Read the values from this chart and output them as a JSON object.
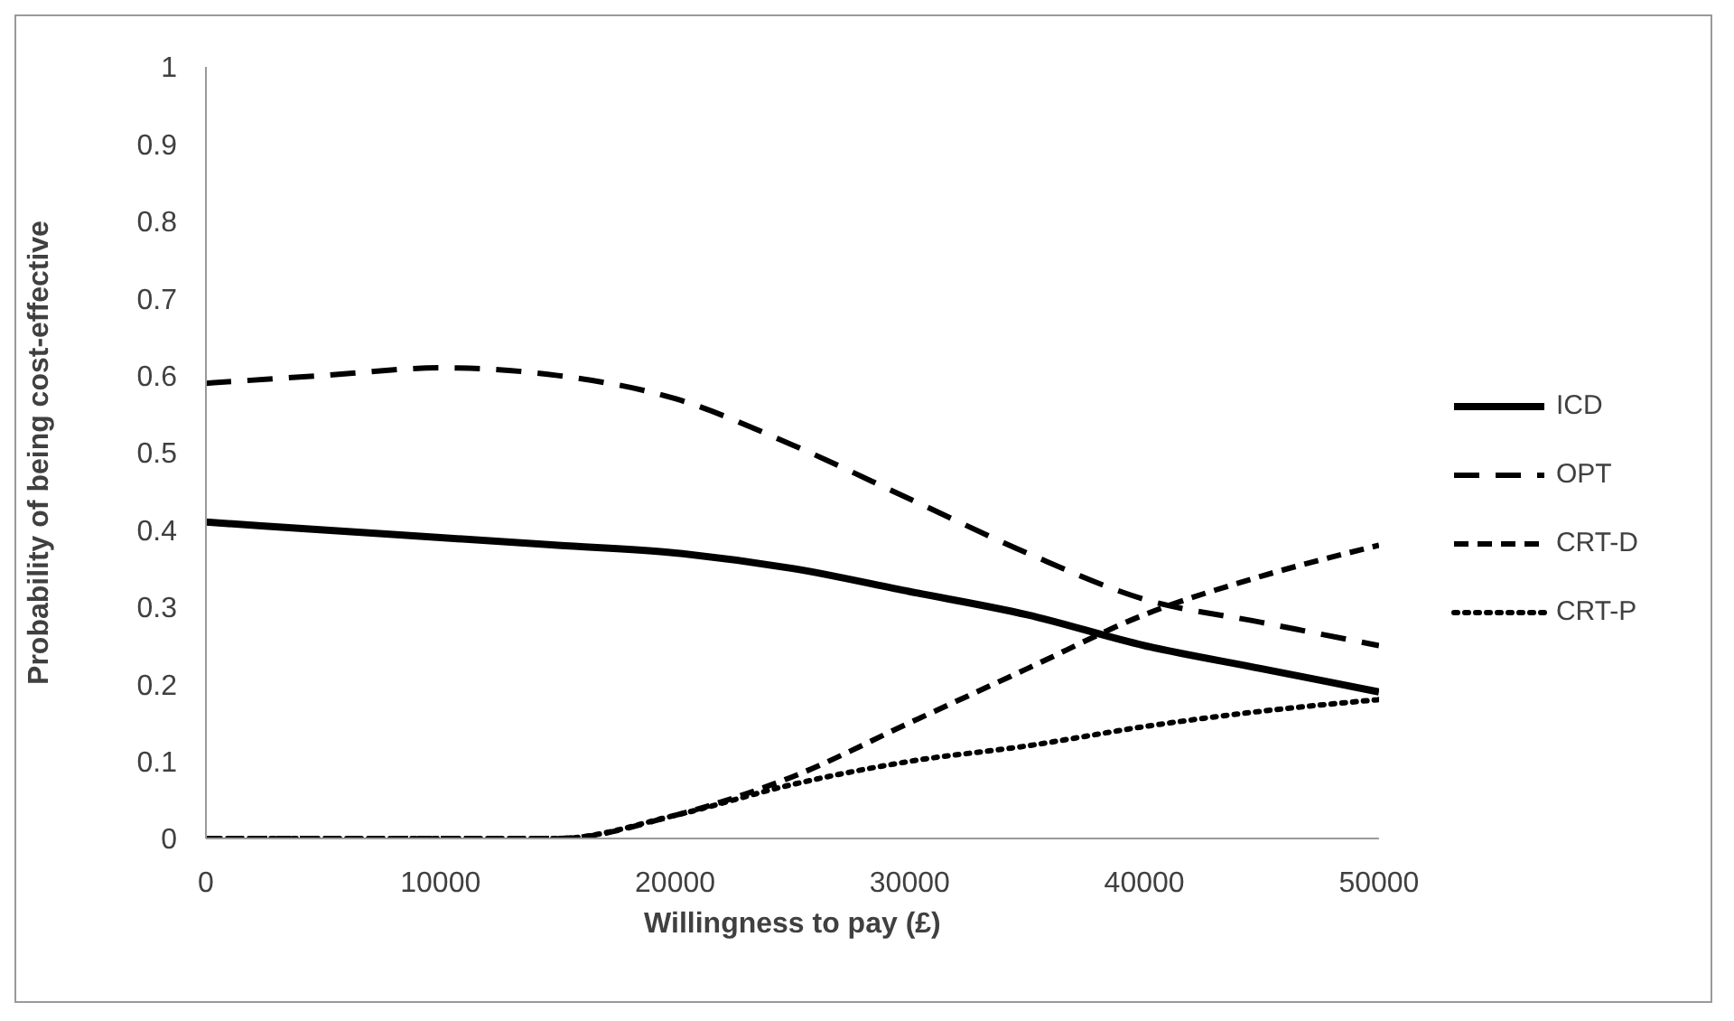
{
  "chart_data": {
    "type": "line",
    "xlabel": "Willingness to pay (£)",
    "ylabel": "Probability of being cost-effective",
    "x": [
      0,
      5000,
      10000,
      15000,
      20000,
      25000,
      30000,
      35000,
      40000,
      45000,
      50000
    ],
    "series": [
      {
        "name": "ICD",
        "color": "#000000",
        "line_style": "solid",
        "values": [
          0.41,
          0.4,
          0.39,
          0.38,
          0.37,
          0.35,
          0.32,
          0.29,
          0.25,
          0.22,
          0.19
        ]
      },
      {
        "name": "OPT",
        "color": "#000000",
        "line_style": "dashed",
        "values": [
          0.59,
          0.6,
          0.61,
          0.6,
          0.57,
          0.51,
          0.44,
          0.37,
          0.31,
          0.28,
          0.25
        ]
      },
      {
        "name": "CRT-D",
        "color": "#000000",
        "line_style": "dashed",
        "values": [
          0,
          0,
          0,
          0,
          0.03,
          0.08,
          0.15,
          0.22,
          0.29,
          0.34,
          0.38
        ]
      },
      {
        "name": "CRT-P",
        "color": "#000000",
        "line_style": "dotted",
        "values": [
          0,
          0,
          0,
          0,
          0.03,
          0.07,
          0.1,
          0.12,
          0.145,
          0.165,
          0.18
        ]
      }
    ],
    "xlim": [
      0,
      50000
    ],
    "xticks": [
      0,
      10000,
      20000,
      30000,
      40000,
      50000
    ],
    "ylim": [
      0,
      1
    ],
    "yticks": [
      0,
      0.1,
      0.2,
      0.3,
      0.4,
      0.5,
      0.6,
      0.7,
      0.8,
      0.9,
      1
    ],
    "grid": false,
    "legend": "right",
    "marker": "none"
  }
}
